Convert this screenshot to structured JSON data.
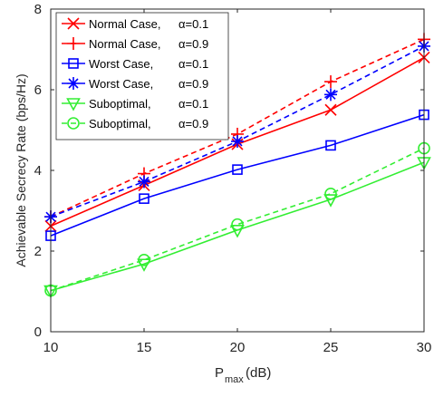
{
  "chart_data": {
    "type": "line",
    "xlabel_main": "P",
    "xlabel_sub": "max",
    "xlabel_unit": "(dB)",
    "ylabel": "Achievable Secrecy Rate (bps/Hz)",
    "xlim": [
      10,
      30
    ],
    "ylim": [
      0,
      8
    ],
    "xticks": [
      10,
      15,
      20,
      25,
      30
    ],
    "yticks": [
      0,
      2,
      4,
      6,
      8
    ],
    "grid": false,
    "legend_position": "top-left",
    "x": [
      10,
      15,
      20,
      25,
      30
    ],
    "series": [
      {
        "name": "Normal Case,",
        "alpha": "α=0.1",
        "color": "#ff0000",
        "marker": "x",
        "dash": false,
        "values": [
          2.62,
          3.63,
          4.65,
          5.5,
          6.8
        ]
      },
      {
        "name": "Normal Case,",
        "alpha": "α=0.9",
        "color": "#ff0000",
        "marker": "plus",
        "dash": true,
        "values": [
          2.85,
          3.92,
          4.9,
          6.2,
          7.25
        ]
      },
      {
        "name": "Worst Case,",
        "alpha": "α=0.1",
        "color": "#0000ff",
        "marker": "square",
        "dash": false,
        "values": [
          2.38,
          3.3,
          4.02,
          4.62,
          5.38
        ]
      },
      {
        "name": "Worst Case,",
        "alpha": "α=0.9",
        "color": "#0000ff",
        "marker": "star",
        "dash": true,
        "values": [
          2.85,
          3.72,
          4.72,
          5.88,
          7.08
        ]
      },
      {
        "name": "Suboptimal,",
        "alpha": "α=0.1",
        "color": "#33ee33",
        "marker": "triangle-down",
        "dash": false,
        "values": [
          1.02,
          1.68,
          2.52,
          3.28,
          4.2
        ]
      },
      {
        "name": "Suboptimal,",
        "alpha": "α=0.9",
        "color": "#33ee33",
        "marker": "circle",
        "dash": true,
        "values": [
          1.02,
          1.78,
          2.66,
          3.42,
          4.55
        ]
      }
    ]
  }
}
